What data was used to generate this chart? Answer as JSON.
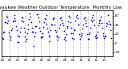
{
  "title": "Milwaukee Weather Outdoor Temperature  Monthly Low",
  "title_fontsize": 4.2,
  "line_color": "#0000dd",
  "marker": ".",
  "marker_size": 2.5,
  "background_color": "#ffffff",
  "grid_color": "#999999",
  "ylabel_right_values": [
    60,
    40,
    20,
    0,
    -20
  ],
  "ylim": [
    -30,
    72
  ],
  "num_years": 14,
  "monthly_lows_base": [
    8,
    12,
    22,
    33,
    43,
    53,
    59,
    57,
    47,
    36,
    26,
    14
  ],
  "noise_std": 4.5,
  "random_seed": 12
}
